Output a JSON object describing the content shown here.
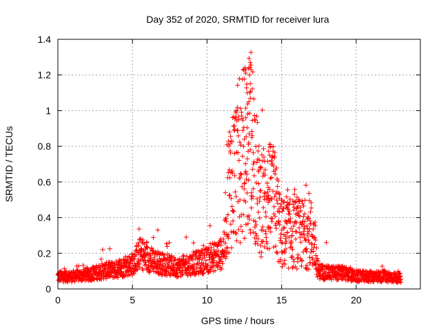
{
  "chart_data": {
    "type": "scatter",
    "title": "Day 352 of 2020, SRMTID for receiver lura",
    "xlabel": "GPS time / hours",
    "ylabel": "SRMTID / TECUs",
    "xlim": [
      0,
      24.3
    ],
    "ylim": [
      0,
      1.4
    ],
    "xticks": [
      0,
      5,
      10,
      15,
      20
    ],
    "yticks": [
      0,
      0.2,
      0.4,
      0.6,
      0.8,
      1,
      1.2,
      1.4
    ],
    "ytick_labels": [
      "0",
      "0.2",
      "0.4",
      "0.6",
      "0.8",
      "1",
      "1.2",
      "1.4"
    ],
    "grid": true,
    "marker": "+",
    "series": [
      {
        "name": "SRMTID",
        "color": "#ff0000",
        "profile": {
          "x": [
            0,
            1,
            2,
            3,
            4,
            5,
            5.5,
            6,
            7,
            8,
            9,
            10,
            11,
            11.5,
            12,
            12.5,
            13,
            13.5,
            14,
            14.5,
            15,
            16,
            17,
            17.5,
            18,
            19,
            20,
            21,
            22,
            23
          ],
          "y": [
            0.07,
            0.07,
            0.08,
            0.1,
            0.11,
            0.14,
            0.2,
            0.17,
            0.14,
            0.12,
            0.14,
            0.16,
            0.2,
            0.38,
            0.45,
            0.5,
            0.55,
            0.32,
            0.33,
            0.32,
            0.2,
            0.2,
            0.2,
            0.1,
            0.09,
            0.09,
            0.07,
            0.07,
            0.07,
            0.06
          ]
        },
        "notable_points": [
          {
            "x": 12.6,
            "y": 1.21
          },
          {
            "x": 12.7,
            "y": 1.1
          },
          {
            "x": 12.8,
            "y": 1.05
          },
          {
            "x": 12.85,
            "y": 1.2
          },
          {
            "x": 12.9,
            "y": 1.27
          },
          {
            "x": 12.95,
            "y": 1.23
          },
          {
            "x": 12.9,
            "y": 1.07
          },
          {
            "x": 12.6,
            "y": 0.96
          },
          {
            "x": 12.8,
            "y": 0.82
          },
          {
            "x": 12.9,
            "y": 0.78
          },
          {
            "x": 13.0,
            "y": 0.85
          },
          {
            "x": 12.5,
            "y": 0.84
          },
          {
            "x": 12.7,
            "y": 0.73
          },
          {
            "x": 12.6,
            "y": 0.66
          },
          {
            "x": 12.3,
            "y": 0.64
          },
          {
            "x": 12.5,
            "y": 0.59
          },
          {
            "x": 13.1,
            "y": 0.7
          },
          {
            "x": 14.2,
            "y": 0.75
          },
          {
            "x": 14.3,
            "y": 0.7
          },
          {
            "x": 14.25,
            "y": 0.62
          },
          {
            "x": 14.1,
            "y": 0.57
          },
          {
            "x": 16.2,
            "y": 0.49
          },
          {
            "x": 6.7,
            "y": 0.33
          },
          {
            "x": 8.6,
            "y": 0.29
          },
          {
            "x": 18.0,
            "y": 0.26
          },
          {
            "x": 3.0,
            "y": 0.22
          }
        ]
      }
    ]
  }
}
